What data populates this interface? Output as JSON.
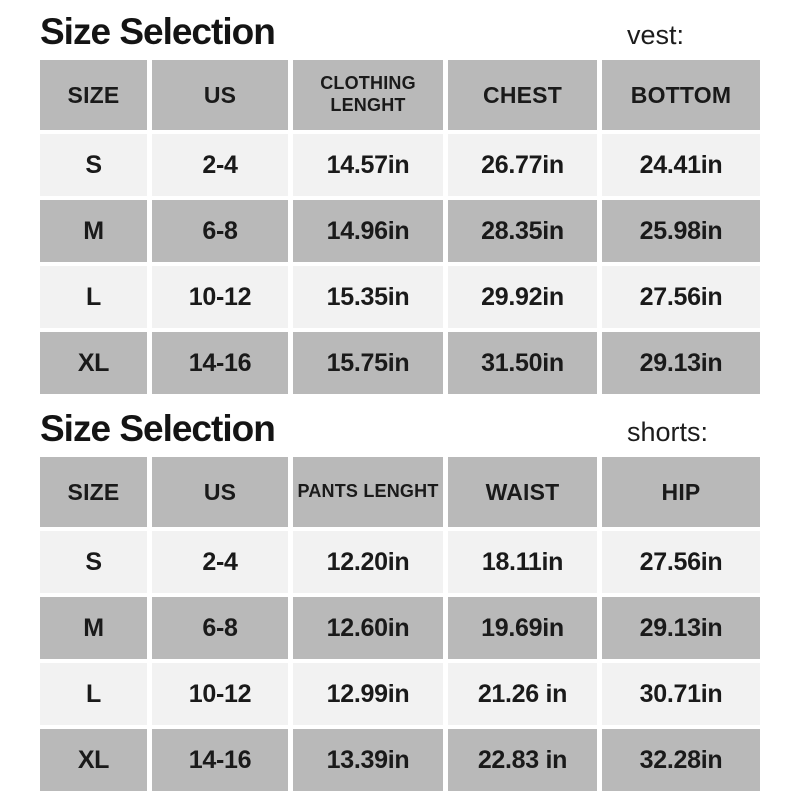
{
  "page": {
    "background": "#ffffff",
    "text_color": "#1a1a1a",
    "header_cell_color": "#b9b9b9",
    "alt_row_color": "#b9b9b9",
    "light_row_color": "#f2f2f2"
  },
  "sections": [
    {
      "title": "Size Selection",
      "tag": "vest:",
      "columns": [
        "SIZE",
        "US",
        "CLOTHING LENGHT",
        "CHEST",
        "BOTTOM"
      ],
      "rows": [
        [
          "S",
          "2-4",
          "14.57in",
          "26.77in",
          "24.41in"
        ],
        [
          "M",
          "6-8",
          "14.96in",
          "28.35in",
          "25.98in"
        ],
        [
          "L",
          "10-12",
          "15.35in",
          "29.92in",
          "27.56in"
        ],
        [
          "XL",
          "14-16",
          "15.75in",
          "31.50in",
          "29.13in"
        ]
      ]
    },
    {
      "title": "Size Selection",
      "tag": "shorts:",
      "columns": [
        "SIZE",
        "US",
        "PANTS LENGHT",
        "WAIST",
        "HIP"
      ],
      "rows": [
        [
          "S",
          "2-4",
          "12.20in",
          "18.11in",
          "27.56in"
        ],
        [
          "M",
          "6-8",
          "12.60in",
          "19.69in",
          "29.13in"
        ],
        [
          "L",
          "10-12",
          "12.99in",
          "21.26 in",
          "30.71in"
        ],
        [
          "XL",
          "14-16",
          "13.39in",
          "22.83 in",
          "32.28in"
        ]
      ]
    }
  ]
}
